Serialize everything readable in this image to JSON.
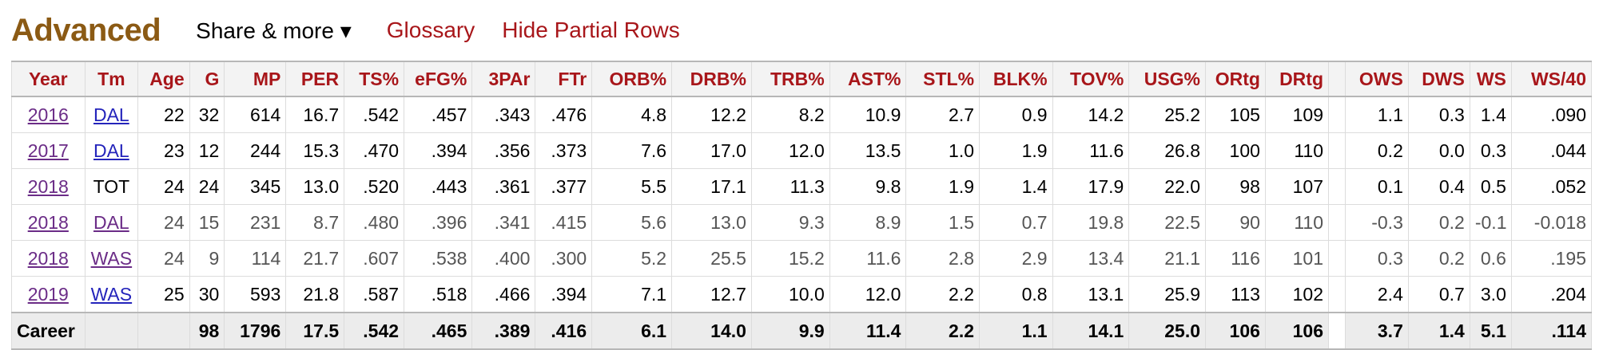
{
  "header": {
    "title": "Advanced",
    "share_label": "Share & more ▾",
    "glossary_label": "Glossary",
    "hide_partial_label": "Hide Partial Rows"
  },
  "table": {
    "columns": [
      "Year",
      "Tm",
      "Age",
      "G",
      "MP",
      "PER",
      "TS%",
      "eFG%",
      "3PAr",
      "FTr",
      "ORB%",
      "DRB%",
      "TRB%",
      "AST%",
      "STL%",
      "BLK%",
      "TOV%",
      "USG%",
      "ORtg",
      "DRtg",
      "",
      "OWS",
      "DWS",
      "WS",
      "WS/40"
    ],
    "rows": [
      {
        "year": "2016",
        "tm": "DAL",
        "tm_link": true,
        "partial": false,
        "age": "22",
        "g": "32",
        "mp": "614",
        "per": "16.7",
        "ts": ".542",
        "efg": ".457",
        "tpar": ".343",
        "ftr": ".476",
        "orb": "4.8",
        "drb": "12.2",
        "trb": "8.2",
        "ast": "10.9",
        "stl": "2.7",
        "blk": "0.9",
        "tov": "14.2",
        "usg": "25.2",
        "ortg": "105",
        "drtg": "109",
        "ows": "1.1",
        "dws": "0.3",
        "ws": "1.4",
        "ws40": ".090"
      },
      {
        "year": "2017",
        "tm": "DAL",
        "tm_link": true,
        "partial": false,
        "age": "23",
        "g": "12",
        "mp": "244",
        "per": "15.3",
        "ts": ".470",
        "efg": ".394",
        "tpar": ".356",
        "ftr": ".373",
        "orb": "7.6",
        "drb": "17.0",
        "trb": "12.0",
        "ast": "13.5",
        "stl": "1.0",
        "blk": "1.9",
        "tov": "11.6",
        "usg": "26.8",
        "ortg": "100",
        "drtg": "110",
        "ows": "0.2",
        "dws": "0.0",
        "ws": "0.3",
        "ws40": ".044"
      },
      {
        "year": "2018",
        "tm": "TOT",
        "tm_link": false,
        "partial": false,
        "age": "24",
        "g": "24",
        "mp": "345",
        "per": "13.0",
        "ts": ".520",
        "efg": ".443",
        "tpar": ".361",
        "ftr": ".377",
        "orb": "5.5",
        "drb": "17.1",
        "trb": "11.3",
        "ast": "9.8",
        "stl": "1.9",
        "blk": "1.4",
        "tov": "17.9",
        "usg": "22.0",
        "ortg": "98",
        "drtg": "107",
        "ows": "0.1",
        "dws": "0.4",
        "ws": "0.5",
        "ws40": ".052"
      },
      {
        "year": "2018",
        "tm": "DAL",
        "tm_link": true,
        "partial": true,
        "age": "24",
        "g": "15",
        "mp": "231",
        "per": "8.7",
        "ts": ".480",
        "efg": ".396",
        "tpar": ".341",
        "ftr": ".415",
        "orb": "5.6",
        "drb": "13.0",
        "trb": "9.3",
        "ast": "8.9",
        "stl": "1.5",
        "blk": "0.7",
        "tov": "19.8",
        "usg": "22.5",
        "ortg": "90",
        "drtg": "110",
        "ows": "-0.3",
        "dws": "0.2",
        "ws": "-0.1",
        "ws40": "-0.018"
      },
      {
        "year": "2018",
        "tm": "WAS",
        "tm_link": true,
        "partial": true,
        "age": "24",
        "g": "9",
        "mp": "114",
        "per": "21.7",
        "ts": ".607",
        "efg": ".538",
        "tpar": ".400",
        "ftr": ".300",
        "orb": "5.2",
        "drb": "25.5",
        "trb": "15.2",
        "ast": "11.6",
        "stl": "2.8",
        "blk": "2.9",
        "tov": "13.4",
        "usg": "21.1",
        "ortg": "116",
        "drtg": "101",
        "ows": "0.3",
        "dws": "0.2",
        "ws": "0.6",
        "ws40": ".195"
      },
      {
        "year": "2019",
        "tm": "WAS",
        "tm_link": true,
        "partial": false,
        "age": "25",
        "g": "30",
        "mp": "593",
        "per": "21.8",
        "ts": ".587",
        "efg": ".518",
        "tpar": ".466",
        "ftr": ".394",
        "orb": "7.1",
        "drb": "12.7",
        "trb": "10.0",
        "ast": "12.0",
        "stl": "2.2",
        "blk": "0.8",
        "tov": "13.1",
        "usg": "25.9",
        "ortg": "113",
        "drtg": "102",
        "ows": "2.4",
        "dws": "0.7",
        "ws": "3.0",
        "ws40": ".204"
      }
    ],
    "career": {
      "label": "Career",
      "g": "98",
      "mp": "1796",
      "per": "17.5",
      "ts": ".542",
      "efg": ".465",
      "tpar": ".389",
      "ftr": ".416",
      "orb": "6.1",
      "drb": "14.0",
      "trb": "9.9",
      "ast": "11.4",
      "stl": "2.2",
      "blk": "1.1",
      "tov": "14.1",
      "usg": "25.0",
      "ortg": "106",
      "drtg": "106",
      "ows": "3.7",
      "dws": "1.4",
      "ws": "5.1",
      "ws40": ".114"
    }
  },
  "colors": {
    "title": "#8B5A14",
    "link_red": "#A8161A",
    "link_blue": "#2424bb",
    "link_visited": "#6b2c87"
  }
}
